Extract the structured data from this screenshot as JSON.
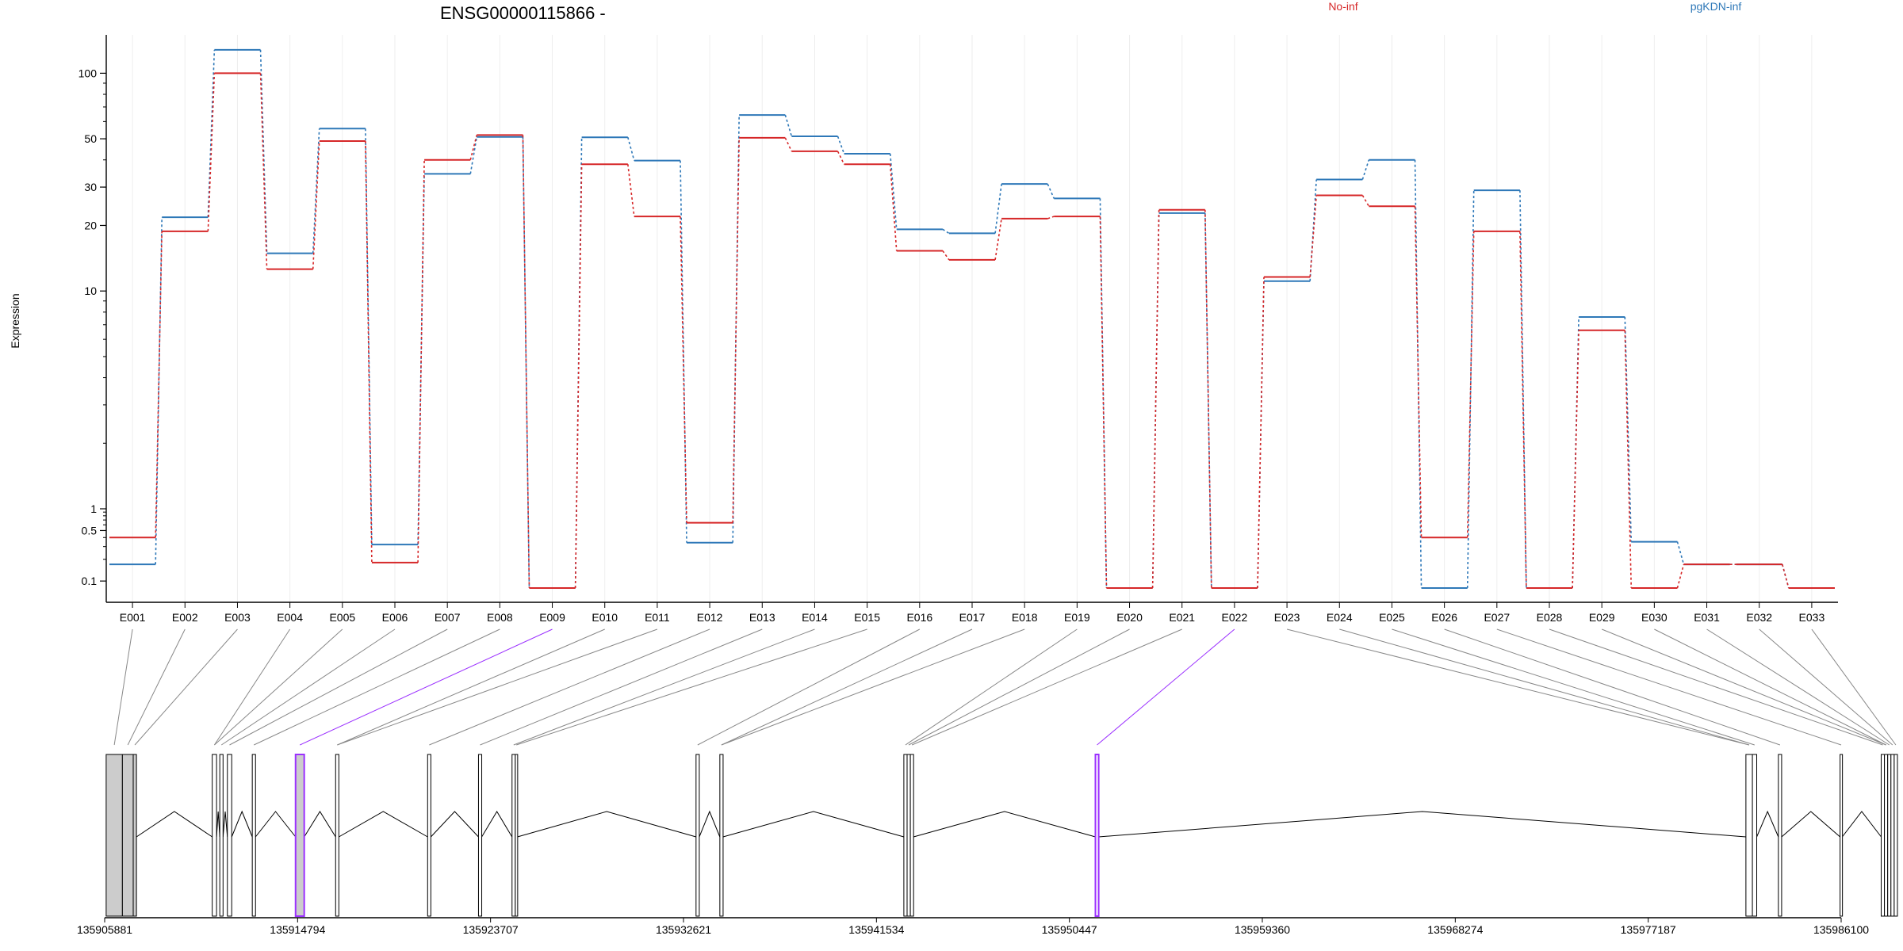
{
  "chart_data": {
    "type": "line",
    "title": "ENSG00000115866 -",
    "ylabel": "Expression",
    "xlabel": "",
    "y_scale": "log",
    "ylim": [
      0.08,
      150
    ],
    "y_ticks": [
      0.1,
      0.5,
      1,
      10,
      20,
      30,
      50,
      100
    ],
    "y_tick_labels": [
      "0.1",
      "0.5",
      "1",
      "10",
      "20",
      "30",
      "50",
      "100"
    ],
    "legend_placement": "top-right",
    "categories": [
      "E001",
      "E002",
      "E003",
      "E004",
      "E005",
      "E006",
      "E007",
      "E008",
      "E009",
      "E010",
      "E011",
      "E012",
      "E013",
      "E014",
      "E015",
      "E016",
      "E017",
      "E018",
      "E019",
      "E020",
      "E021",
      "E022",
      "E023",
      "E024",
      "E025",
      "E026",
      "E027",
      "E028",
      "E029",
      "E030",
      "E031",
      "E032",
      "E033"
    ],
    "series": [
      {
        "name": "No-inf",
        "color": "#d62728",
        "values": [
          0.4,
          18.8,
          100,
          12.6,
          48.8,
          0.18,
          40,
          52,
          0.08,
          38.2,
          22,
          0.64,
          50.5,
          43.8,
          38.2,
          15.3,
          13.9,
          21.5,
          22,
          0.08,
          23.6,
          0.08,
          11.6,
          27.5,
          24.5,
          0.4,
          18.8,
          0.08,
          6.6,
          0.08,
          0.17,
          0.17,
          0.08
        ]
      },
      {
        "name": "pgKDN-inf",
        "color": "#2e78b8",
        "values": [
          0.17,
          21.8,
          128,
          14.9,
          55.7,
          0.32,
          34.5,
          51,
          0.08,
          50.8,
          39.7,
          0.34,
          64.3,
          51.3,
          42.7,
          19.2,
          18.4,
          31,
          26.6,
          0.08,
          22.8,
          0.08,
          11.1,
          32.5,
          40,
          0.08,
          29,
          0.08,
          7.6,
          0.35,
          0.17,
          0.17,
          0.08
        ]
      }
    ],
    "gene_track": {
      "x_ticks": [
        135905881,
        135914794,
        135923707,
        135932621,
        135941534,
        135950447,
        135959360,
        135968274,
        135977187,
        135986100
      ],
      "x_tick_labels": [
        "135905881",
        "135914794",
        "135923707",
        "135932621",
        "135941534",
        "135950447",
        "135959360",
        "135968274",
        "135977187",
        "135986100"
      ],
      "range": [
        135905881,
        135986100
      ],
      "exons": [
        {
          "start": 135905950,
          "end": 135906700,
          "shade": "#cccccc",
          "lead": "#888888"
        },
        {
          "start": 135906700,
          "end": 135907200,
          "shade": "#cccccc",
          "lead": "#888888"
        },
        {
          "start": 135907200,
          "end": 135907350,
          "shade": "#cccccc",
          "lead": "#888888"
        },
        {
          "start": 135910850,
          "end": 135911050,
          "shade": "none",
          "lead": "#888888"
        },
        {
          "start": 135911200,
          "end": 135911350,
          "shade": "none",
          "lead": "#888888"
        },
        {
          "start": 135911550,
          "end": 135911750,
          "shade": "none",
          "lead": "#888888"
        },
        {
          "start": 135912700,
          "end": 135912850,
          "shade": "none",
          "lead": "#888888"
        },
        {
          "start": 135914700,
          "end": 135915100,
          "shade": "#cccccc",
          "lead": "#9b30ff"
        },
        {
          "start": 135916550,
          "end": 135916700,
          "shade": "none",
          "lead": "#888888"
        },
        {
          "start": 135920800,
          "end": 135920950,
          "shade": "none",
          "lead": "#888888"
        },
        {
          "start": 135923150,
          "end": 135923300,
          "shade": "none",
          "lead": "#888888"
        },
        {
          "start": 135924700,
          "end": 135924850,
          "shade": "none",
          "lead": "#888888"
        },
        {
          "start": 135924850,
          "end": 135924950,
          "shade": "none",
          "lead": "#888888"
        },
        {
          "start": 135933200,
          "end": 135933350,
          "shade": "none",
          "lead": "#888888"
        },
        {
          "start": 135934300,
          "end": 135934450,
          "shade": "none",
          "lead": "#888888"
        },
        {
          "start": 135942800,
          "end": 135942950,
          "shade": "none",
          "lead": "#888888"
        },
        {
          "start": 135942950,
          "end": 135943100,
          "shade": "none",
          "lead": "#888888"
        },
        {
          "start": 135943100,
          "end": 135943250,
          "shade": "none",
          "lead": "#888888"
        },
        {
          "start": 135951650,
          "end": 135951800,
          "shade": "none",
          "lead": "#9b30ff"
        },
        {
          "start": 135981700,
          "end": 135982000,
          "shade": "none",
          "lead": "#888888"
        },
        {
          "start": 135982000,
          "end": 135982200,
          "shade": "none",
          "lead": "#888888"
        },
        {
          "start": 135983200,
          "end": 135983350,
          "shade": "none",
          "lead": "#888888"
        },
        {
          "start": 135986050,
          "end": 135986150,
          "shade": "none",
          "lead": "#888888"
        },
        {
          "start": 135987950,
          "end": 135988100,
          "shade": "none",
          "lead": "#888888"
        },
        {
          "start": 135988100,
          "end": 135988250,
          "shade": "none",
          "lead": "#888888"
        },
        {
          "start": 135988250,
          "end": 135988400,
          "shade": "none",
          "lead": "#888888"
        },
        {
          "start": 135988400,
          "end": 135988550,
          "shade": "none",
          "lead": "#888888"
        },
        {
          "start": 135988550,
          "end": 135988700,
          "shade": "none",
          "lead": "#888888"
        }
      ]
    }
  }
}
